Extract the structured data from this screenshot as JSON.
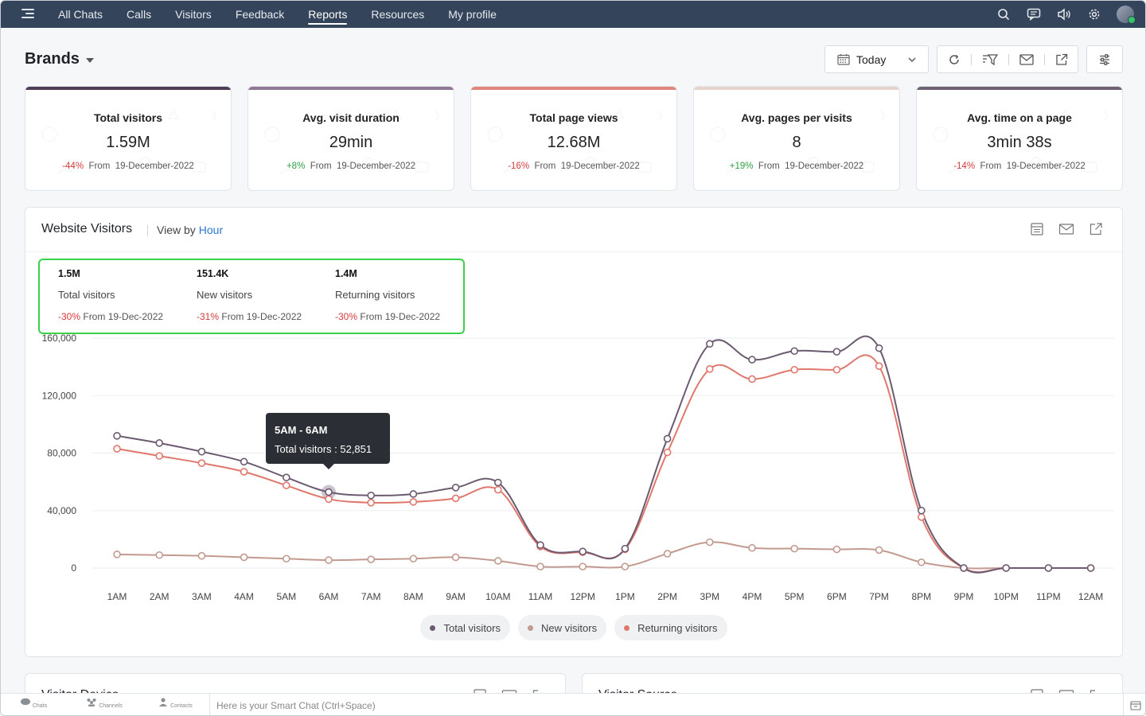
{
  "nav": {
    "items": [
      "All Chats",
      "Calls",
      "Visitors",
      "Feedback",
      "Reports",
      "Resources",
      "My profile"
    ],
    "active_index": 4
  },
  "page": {
    "title": "Brands",
    "date_filter": "Today"
  },
  "kpis": [
    {
      "title": "Total visitors",
      "value": "1.59M",
      "delta": "-44%",
      "from": "From",
      "date": "19-December-2022",
      "trend": "down",
      "accent": "#4e3d57"
    },
    {
      "title": "Avg. visit duration",
      "value": "29min",
      "delta": "+8%",
      "from": "From",
      "date": "19-December-2022",
      "trend": "up",
      "accent": "#8f7795"
    },
    {
      "title": "Total page views",
      "value": "12.68M",
      "delta": "-16%",
      "from": "From",
      "date": "19-December-2022",
      "trend": "down",
      "accent": "#e0867c"
    },
    {
      "title": "Avg. pages per visits",
      "value": "8",
      "delta": "+19%",
      "from": "From",
      "date": "19-December-2022",
      "trend": "up",
      "accent": "#e6d3cb"
    },
    {
      "title": "Avg. time on a page",
      "value": "3min 38s",
      "delta": "-14%",
      "from": "From",
      "date": "19-December-2022",
      "trend": "down",
      "accent": "#6f6272"
    }
  ],
  "website_visitors": {
    "title": "Website Visitors",
    "view_by_label": "View by",
    "view_by_value": "Hour",
    "summary": [
      {
        "value": "1.5M",
        "label": "Total visitors",
        "delta": "-30%",
        "from": "From 19-Dec-2022"
      },
      {
        "value": "151.4K",
        "label": "New visitors",
        "delta": "-31%",
        "from": "From 19-Dec-2022"
      },
      {
        "value": "1.4M",
        "label": "Returning visitors",
        "delta": "-30%",
        "from": "From 19-Dec-2022"
      }
    ],
    "tooltip": {
      "title": "5AM - 6AM",
      "text": "Total visitors : 52,851"
    }
  },
  "chart_data": {
    "type": "line",
    "title": "",
    "xlabel": "",
    "ylabel": "",
    "x": [
      "1AM",
      "2AM",
      "3AM",
      "4AM",
      "5AM",
      "6AM",
      "7AM",
      "8AM",
      "9AM",
      "10AM",
      "11AM",
      "12PM",
      "1PM",
      "2PM",
      "3PM",
      "4PM",
      "5PM",
      "6PM",
      "7PM",
      "8PM",
      "9PM",
      "10PM",
      "11PM",
      "12AM"
    ],
    "y_ticks": [
      "0",
      "40,000",
      "80,000",
      "120,000",
      "160,000"
    ],
    "ylim": [
      0,
      160000
    ],
    "grid": true,
    "legend": "bottom-center",
    "series": [
      {
        "name": "Total visitors",
        "color": "#6b5a70",
        "values": [
          92000,
          87000,
          81000,
          74000,
          63000,
          52851,
          50500,
          51500,
          56000,
          59500,
          16000,
          11500,
          13500,
          90000,
          156000,
          145000,
          151000,
          150500,
          153000,
          40000,
          0,
          0,
          0,
          0
        ]
      },
      {
        "name": "Returning visitors",
        "color": "#e0776d",
        "values": [
          83000,
          78000,
          73000,
          67000,
          57500,
          48000,
          45500,
          46000,
          48500,
          54500,
          15000,
          11000,
          13000,
          80500,
          138500,
          131500,
          138000,
          138000,
          140500,
          35500,
          0,
          0,
          0,
          0
        ]
      },
      {
        "name": "New visitors",
        "color": "#c29a8f",
        "values": [
          9500,
          9000,
          8500,
          7500,
          6500,
          5500,
          6000,
          6500,
          7500,
          5000,
          1000,
          1000,
          1000,
          10000,
          18000,
          14000,
          13500,
          13000,
          12500,
          4000,
          0,
          0,
          0,
          0
        ]
      }
    ]
  },
  "legend_items": [
    {
      "label": "Total visitors",
      "color": "#6b5a70"
    },
    {
      "label": "New visitors",
      "color": "#c29a8f"
    },
    {
      "label": "Returning visitors",
      "color": "#e0776d"
    }
  ],
  "bottom_panels": {
    "left_title": "Visitor Device",
    "right_title": "Visitor Source"
  },
  "bottombar": {
    "items": [
      "Chats",
      "Channels",
      "Contacts"
    ],
    "smart_chat_placeholder": "Here is your Smart Chat (Ctrl+Space)"
  }
}
